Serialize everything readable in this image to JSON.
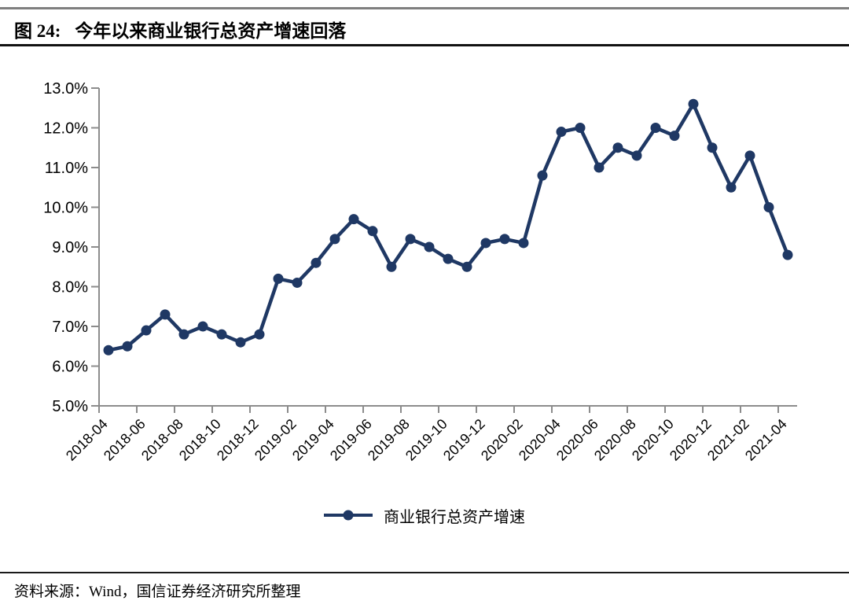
{
  "header": {
    "figure_label": "图 24:",
    "title": "今年以来商业银行总资产增速回落"
  },
  "chart_data": {
    "type": "line",
    "title": "今年以来商业银行总资产增速回落",
    "categories": [
      "2018-04",
      "2018-05",
      "2018-06",
      "2018-07",
      "2018-08",
      "2018-09",
      "2018-10",
      "2018-11",
      "2018-12",
      "2019-01",
      "2019-02",
      "2019-03",
      "2019-04",
      "2019-05",
      "2019-06",
      "2019-07",
      "2019-08",
      "2019-09",
      "2019-10",
      "2019-11",
      "2019-12",
      "2020-01",
      "2020-02",
      "2020-03",
      "2020-04",
      "2020-05",
      "2020-06",
      "2020-07",
      "2020-08",
      "2020-09",
      "2020-10",
      "2020-11",
      "2020-12",
      "2021-01",
      "2021-02",
      "2021-03",
      "2021-04"
    ],
    "series": [
      {
        "name": "商业银行总资产增速",
        "values": [
          6.4,
          6.5,
          6.9,
          7.3,
          6.8,
          7.0,
          6.8,
          6.6,
          6.8,
          8.2,
          8.1,
          8.6,
          9.2,
          9.7,
          9.4,
          8.5,
          9.2,
          9.0,
          8.7,
          8.5,
          9.1,
          9.2,
          9.1,
          10.8,
          11.9,
          12.0,
          11.0,
          11.5,
          11.3,
          12.0,
          11.8,
          12.6,
          11.5,
          10.5,
          11.3,
          10.0,
          8.8
        ]
      }
    ],
    "ylim": [
      5.0,
      13.0
    ],
    "y_tick_step": 1.0,
    "y_tick_labels": [
      "5.0%",
      "6.0%",
      "7.0%",
      "8.0%",
      "9.0%",
      "10.0%",
      "11.0%",
      "12.0%",
      "13.0%"
    ],
    "x_tick_labels": [
      "2018-04",
      "2018-06",
      "2018-08",
      "2018-10",
      "2018-12",
      "2019-02",
      "2019-04",
      "2019-06",
      "2019-08",
      "2019-10",
      "2019-12",
      "2020-02",
      "2020-04",
      "2020-06",
      "2020-08",
      "2020-10",
      "2020-12",
      "2021-02",
      "2021-04"
    ],
    "grid": false,
    "legend_position": "bottom",
    "line_color": "#1f3864",
    "axis_color": "#8c8c8c",
    "tick_label_color": "#000000"
  },
  "legend": {
    "label": "商业银行总资产增速"
  },
  "footer": {
    "source": "资料来源：Wind，国信证券经济研究所整理"
  }
}
